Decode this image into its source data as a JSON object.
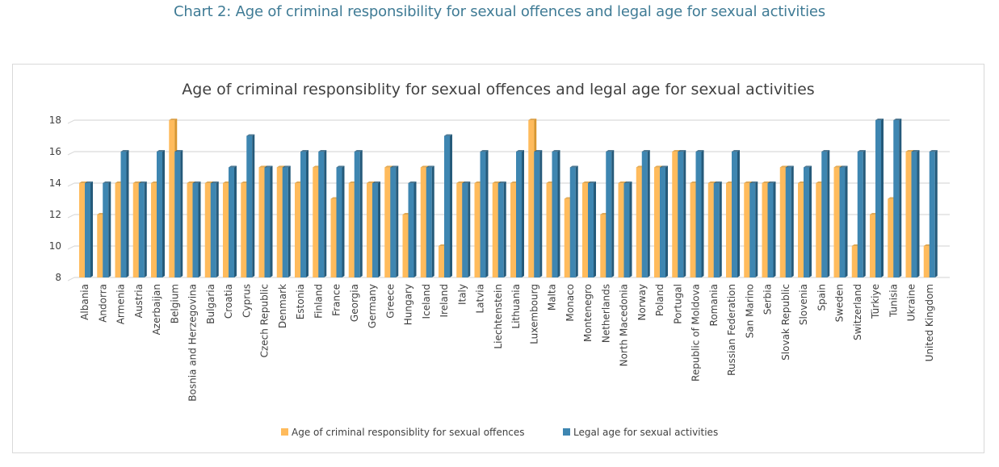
{
  "page": {
    "caption": "Chart 2: Age of criminal responsibility for sexual offences and legal age for sexual activities"
  },
  "colors": {
    "series1": "#ffbb5c",
    "series1_side": "#d9962f",
    "series2": "#3e86b1",
    "series2_side": "#255a7a",
    "grid": "#d9d9d9",
    "caption": "#3f7b95"
  },
  "chart_data": {
    "type": "bar",
    "title": "Age of criminal responsiblity for sexual offences and legal age for sexual activities",
    "xlabel": "",
    "ylabel": "",
    "ylim": [
      8,
      18
    ],
    "yticks": [
      8,
      10,
      12,
      14,
      16,
      18
    ],
    "grid": true,
    "legend_position": "bottom",
    "categories": [
      "Albania",
      "Andorra",
      "Armenia",
      "Austria",
      "Azerbaijan",
      "Belgium",
      "Bosnia and Herzegovina",
      "Bulgaria",
      "Croatia",
      "Cyprus",
      "Czech Republic",
      "Denmark",
      "Estonia",
      "Finland",
      "France",
      "Georgia",
      "Germany",
      "Greece",
      "Hungary",
      "Iceland",
      "Ireland",
      "Italy",
      "Latvia",
      "Liechtenstein",
      "Lithuania",
      "Luxembourg",
      "Malta",
      "Monaco",
      "Montenegro",
      "Netherlands",
      "North Macedonia",
      "Norway",
      "Poland",
      "Portugal",
      "Republic of Moldova",
      "Romania",
      "Russian Federation",
      "San Marino",
      "Serbia",
      "Slovak Republic",
      "Slovenia",
      "Spain",
      "Sweden",
      "Switzerland",
      "Türkiye",
      "Tunisia",
      "Ukraine",
      "United Kingdom"
    ],
    "series": [
      {
        "name": "Age of criminal responsiblity for sexual offences",
        "values": [
          14,
          12,
          14,
          14,
          14,
          18,
          14,
          14,
          14,
          14,
          15,
          15,
          14,
          15,
          13,
          14,
          14,
          15,
          12,
          15,
          10,
          14,
          14,
          14,
          14,
          18,
          14,
          13,
          14,
          12,
          14,
          15,
          15,
          16,
          14,
          14,
          14,
          14,
          14,
          15,
          14,
          14,
          15,
          10,
          12,
          13,
          16,
          10
        ]
      },
      {
        "name": "Legal age for sexual activities",
        "values": [
          14,
          14,
          16,
          14,
          16,
          16,
          14,
          14,
          15,
          17,
          15,
          15,
          16,
          16,
          15,
          16,
          14,
          15,
          14,
          15,
          17,
          14,
          16,
          14,
          16,
          16,
          16,
          15,
          14,
          16,
          14,
          16,
          15,
          16,
          16,
          14,
          16,
          14,
          14,
          15,
          15,
          16,
          15,
          16,
          18,
          18,
          16,
          16
        ]
      }
    ]
  }
}
